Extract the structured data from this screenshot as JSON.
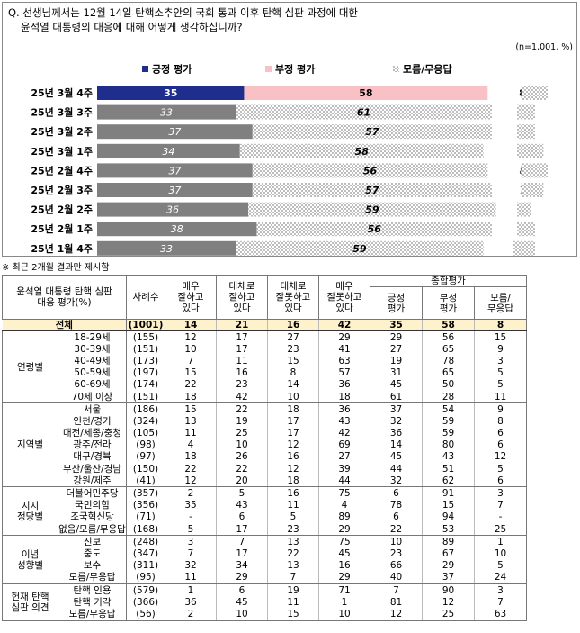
{
  "question": {
    "line1": "Q. 선생님께서는 12월 14일 탄핵소추안의 국회 통과 이후 탄핵 심판 과정에 대한",
    "line2": "윤석열 대통령의 대응에 대해 어떻게 생각하십니까?",
    "note": "(n=1,001, %)"
  },
  "colors": {
    "positive": "#1f2d8c",
    "negative": "#f9c0c6",
    "past": "#808080",
    "dk": "#c8c8c8",
    "total_bg": "#fef2cc"
  },
  "chart_data": {
    "type": "bar",
    "stacked": true,
    "orientation": "horizontal",
    "legend_position": "top",
    "categories": [
      "25년 3월 4주",
      "25년 3월 3주",
      "25년 3월 2주",
      "25년 3월 1주",
      "25년 2월 4주",
      "25년 2월 3주",
      "25년 2월 2주",
      "25년 2월 1주",
      "25년 1월 4주"
    ],
    "series": [
      {
        "name": "긍정 평가",
        "values": [
          35,
          33,
          37,
          34,
          37,
          37,
          36,
          38,
          33
        ]
      },
      {
        "name": "부정 평가",
        "values": [
          58,
          61,
          57,
          58,
          56,
          57,
          59,
          56,
          59
        ]
      },
      {
        "name": "모름/무응답",
        "values": [
          8,
          6,
          6,
          8,
          8,
          7,
          5,
          6,
          7
        ]
      }
    ],
    "xlim": [
      0,
      100
    ]
  },
  "footnote": "※ 최근 2개월 결과만 제시함",
  "table": {
    "header": {
      "corner": [
        "윤석열 대통령 탄핵 심판",
        "대응 평가(%)"
      ],
      "n": "사례수",
      "cols": [
        [
          "매우",
          "잘하고",
          "있다"
        ],
        [
          "대체로",
          "잘하고",
          "있다"
        ],
        [
          "대체로",
          "잘못하고",
          "있다"
        ],
        [
          "매우",
          "잘못하고",
          "있다"
        ]
      ],
      "summary_group": "종합평가",
      "summary_cols": [
        [
          "긍정",
          "평가"
        ],
        [
          "부정",
          "평가"
        ],
        [
          "모름/",
          "무응답"
        ]
      ]
    },
    "total": {
      "label": "전체",
      "n": "(1001)",
      "values": [
        "14",
        "21",
        "16",
        "42",
        "35",
        "58",
        "8"
      ]
    },
    "groups": [
      {
        "name": [
          "연령별"
        ],
        "rows": [
          {
            "label": "18-29세",
            "n": "(155)",
            "values": [
              "12",
              "17",
              "27",
              "29",
              "29",
              "56",
              "15"
            ]
          },
          {
            "label": "30-39세",
            "n": "(151)",
            "values": [
              "10",
              "17",
              "23",
              "41",
              "27",
              "65",
              "9"
            ]
          },
          {
            "label": "40-49세",
            "n": "(173)",
            "values": [
              "7",
              "11",
              "15",
              "63",
              "19",
              "78",
              "3"
            ]
          },
          {
            "label": "50-59세",
            "n": "(197)",
            "values": [
              "15",
              "16",
              "8",
              "57",
              "31",
              "65",
              "5"
            ]
          },
          {
            "label": "60-69세",
            "n": "(174)",
            "values": [
              "22",
              "23",
              "14",
              "36",
              "45",
              "50",
              "5"
            ]
          },
          {
            "label": "70세 이상",
            "n": "(151)",
            "values": [
              "18",
              "42",
              "10",
              "18",
              "61",
              "28",
              "11"
            ]
          }
        ]
      },
      {
        "name": [
          "지역별"
        ],
        "rows": [
          {
            "label": "서울",
            "n": "(186)",
            "values": [
              "15",
              "22",
              "18",
              "36",
              "37",
              "54",
              "9"
            ]
          },
          {
            "label": "인천/경기",
            "n": "(324)",
            "values": [
              "13",
              "19",
              "17",
              "43",
              "32",
              "59",
              "8"
            ]
          },
          {
            "label": "대전/세종/충청",
            "n": "(105)",
            "values": [
              "11",
              "25",
              "17",
              "42",
              "36",
              "59",
              "6"
            ]
          },
          {
            "label": "광주/전라",
            "n": "(98)",
            "values": [
              "4",
              "10",
              "12",
              "69",
              "14",
              "80",
              "6"
            ]
          },
          {
            "label": "대구/경북",
            "n": "(97)",
            "values": [
              "18",
              "26",
              "16",
              "27",
              "45",
              "43",
              "12"
            ]
          },
          {
            "label": "부산/울산/경남",
            "n": "(150)",
            "values": [
              "22",
              "22",
              "12",
              "39",
              "44",
              "51",
              "5"
            ]
          },
          {
            "label": "강원/제주",
            "n": "(41)",
            "values": [
              "12",
              "20",
              "18",
              "44",
              "32",
              "62",
              "6"
            ]
          }
        ]
      },
      {
        "name": [
          "지지",
          "정당별"
        ],
        "rows": [
          {
            "label": "더불어민주당",
            "n": "(357)",
            "values": [
              "2",
              "5",
              "16",
              "75",
              "6",
              "91",
              "3"
            ]
          },
          {
            "label": "국민의힘",
            "n": "(356)",
            "values": [
              "35",
              "43",
              "11",
              "4",
              "78",
              "15",
              "7"
            ]
          },
          {
            "label": "조국혁신당",
            "n": "(71)",
            "values": [
              "-",
              "6",
              "5",
              "89",
              "6",
              "94",
              "-"
            ]
          },
          {
            "label": "없음/모름/무응답",
            "n": "(168)",
            "values": [
              "5",
              "17",
              "23",
              "29",
              "22",
              "53",
              "25"
            ]
          }
        ]
      },
      {
        "name": [
          "이념",
          "성향별"
        ],
        "rows": [
          {
            "label": "진보",
            "n": "(248)",
            "values": [
              "3",
              "7",
              "13",
              "75",
              "10",
              "89",
              "1"
            ]
          },
          {
            "label": "중도",
            "n": "(347)",
            "values": [
              "7",
              "17",
              "22",
              "45",
              "23",
              "67",
              "10"
            ]
          },
          {
            "label": "보수",
            "n": "(311)",
            "values": [
              "32",
              "34",
              "13",
              "16",
              "66",
              "29",
              "5"
            ]
          },
          {
            "label": "모름/무응답",
            "n": "(95)",
            "values": [
              "11",
              "29",
              "7",
              "29",
              "40",
              "37",
              "24"
            ]
          }
        ]
      },
      {
        "name": [
          "헌재 탄핵",
          "심판 의견"
        ],
        "rows": [
          {
            "label": "탄핵 인용",
            "n": "(579)",
            "values": [
              "1",
              "6",
              "19",
              "71",
              "7",
              "90",
              "3"
            ]
          },
          {
            "label": "탄핵 기각",
            "n": "(366)",
            "values": [
              "36",
              "45",
              "11",
              "1",
              "81",
              "12",
              "7"
            ]
          },
          {
            "label": "모름/무응답",
            "n": "(56)",
            "values": [
              "2",
              "10",
              "15",
              "10",
              "12",
              "25",
              "63"
            ]
          }
        ]
      }
    ]
  }
}
